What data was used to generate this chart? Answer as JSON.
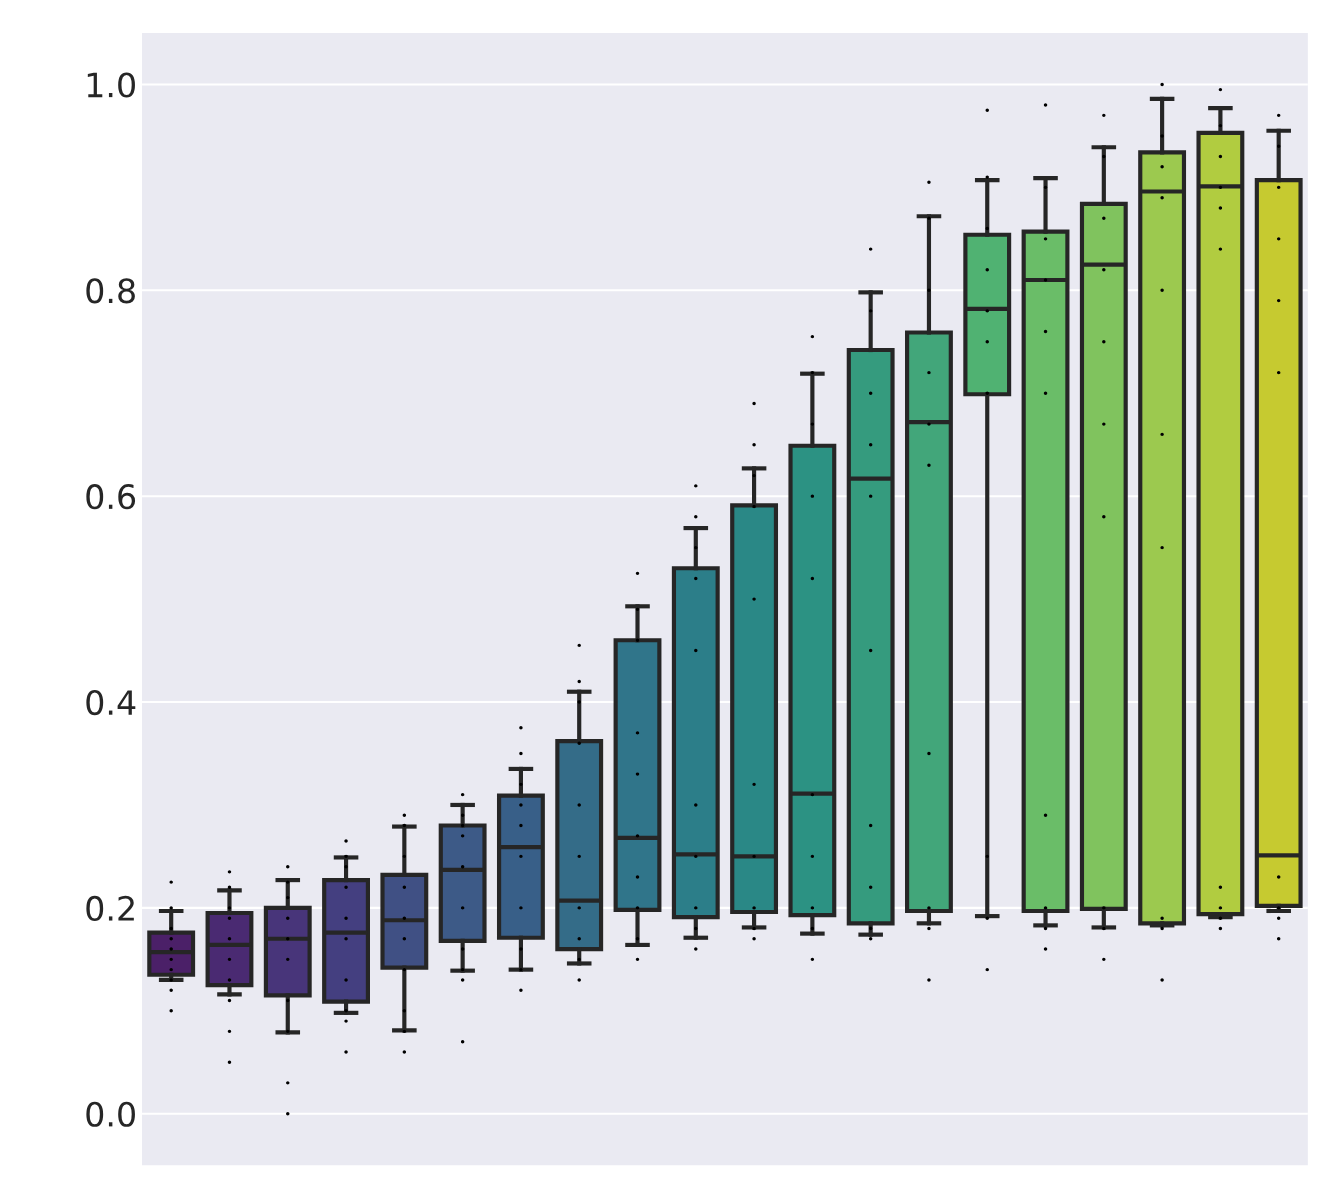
{
  "chart_data": {
    "type": "box",
    "categories": [
      null,
      null,
      null,
      null,
      null,
      null,
      null,
      null,
      null,
      null,
      null,
      null,
      null,
      null,
      null,
      null,
      null,
      null,
      null,
      null
    ],
    "colors": [
      "#4b2068",
      "#4a2a72",
      "#48357a",
      "#443f80",
      "#405084",
      "#3d5a87",
      "#385f88",
      "#346c88",
      "#30758a",
      "#2c7e89",
      "#2a8886",
      "#2c9283",
      "#359b7e",
      "#42a67a",
      "#50b272",
      "#6abd68",
      "#80c35e",
      "#9cc94f",
      "#b1cc40",
      "#c6ca30"
    ],
    "boxes": [
      {
        "low": 0.13,
        "q1": 0.135,
        "median": 0.157,
        "q3": 0.176,
        "high": 0.197
      },
      {
        "low": 0.116,
        "q1": 0.125,
        "median": 0.164,
        "q3": 0.195,
        "high": 0.217
      },
      {
        "low": 0.079,
        "q1": 0.115,
        "median": 0.17,
        "q3": 0.2,
        "high": 0.227
      },
      {
        "low": 0.098,
        "q1": 0.109,
        "median": 0.176,
        "q3": 0.227,
        "high": 0.249
      },
      {
        "low": 0.081,
        "q1": 0.142,
        "median": 0.188,
        "q3": 0.232,
        "high": 0.279
      },
      {
        "low": 0.139,
        "q1": 0.168,
        "median": 0.237,
        "q3": 0.28,
        "high": 0.3
      },
      {
        "low": 0.14,
        "q1": 0.171,
        "median": 0.259,
        "q3": 0.309,
        "high": 0.335
      },
      {
        "low": 0.146,
        "q1": 0.16,
        "median": 0.207,
        "q3": 0.362,
        "high": 0.41
      },
      {
        "low": 0.164,
        "q1": 0.198,
        "median": 0.268,
        "q3": 0.46,
        "high": 0.493
      },
      {
        "low": 0.171,
        "q1": 0.191,
        "median": 0.252,
        "q3": 0.53,
        "high": 0.569
      },
      {
        "low": 0.181,
        "q1": 0.196,
        "median": 0.25,
        "q3": 0.591,
        "high": 0.627
      },
      {
        "low": 0.175,
        "q1": 0.193,
        "median": 0.311,
        "q3": 0.649,
        "high": 0.719
      },
      {
        "low": 0.174,
        "q1": 0.185,
        "median": 0.617,
        "q3": 0.742,
        "high": 0.798
      },
      {
        "low": 0.185,
        "q1": 0.197,
        "median": 0.672,
        "q3": 0.759,
        "high": 0.872
      },
      {
        "low": 0.192,
        "q1": 0.699,
        "median": 0.782,
        "q3": 0.854,
        "high": 0.907
      },
      {
        "low": 0.183,
        "q1": 0.197,
        "median": 0.81,
        "q3": 0.857,
        "high": 0.909
      },
      {
        "low": 0.181,
        "q1": 0.199,
        "median": 0.825,
        "q3": 0.884,
        "high": 0.939
      },
      {
        "low": 0.183,
        "q1": 0.185,
        "median": 0.896,
        "q3": 0.934,
        "high": 0.986
      },
      {
        "low": 0.191,
        "q1": 0.194,
        "median": 0.901,
        "q3": 0.953,
        "high": 0.977
      },
      {
        "low": 0.197,
        "q1": 0.202,
        "median": 0.251,
        "q3": 0.907,
        "high": 0.955
      }
    ],
    "series": [
      {
        "type": "scatter",
        "color": "#000000",
        "values": [
          0.1,
          0.05,
          0.0,
          0.06,
          0.06,
          0.07,
          0.12,
          0.13,
          0.15,
          0.16,
          0.17,
          0.15,
          0.17,
          0.13,
          0.14,
          0.16,
          0.15,
          0.13,
          0.18,
          0.17
        ]
      },
      {
        "type": "scatter",
        "color": "#000000",
        "values": [
          0.12,
          0.08,
          0.03,
          0.09,
          0.08,
          0.13,
          0.14,
          0.15,
          0.17,
          0.18,
          0.18,
          0.18,
          0.18,
          0.18,
          0.19,
          0.18,
          0.18,
          0.18,
          0.19,
          0.19
        ]
      },
      {
        "type": "scatter",
        "color": "#000000",
        "values": [
          0.13,
          0.11,
          0.08,
          0.1,
          0.1,
          0.14,
          0.16,
          0.17,
          0.2,
          0.2,
          0.2,
          0.2,
          0.22,
          0.2,
          0.25,
          0.2,
          0.2,
          0.19,
          0.2,
          0.2
        ]
      },
      {
        "type": "scatter",
        "color": "#000000",
        "values": [
          0.14,
          0.13,
          0.11,
          0.13,
          0.14,
          0.16,
          0.2,
          0.2,
          0.23,
          0.25,
          0.25,
          0.25,
          0.28,
          0.35,
          0.7,
          0.29,
          0.58,
          0.55,
          0.22,
          0.23
        ]
      },
      {
        "type": "scatter",
        "color": "#000000",
        "values": [
          0.15,
          0.15,
          0.15,
          0.17,
          0.17,
          0.2,
          0.25,
          0.25,
          0.27,
          0.3,
          0.32,
          0.31,
          0.45,
          0.63,
          0.75,
          0.7,
          0.67,
          0.66,
          0.84,
          0.72
        ]
      },
      {
        "type": "scatter",
        "color": "#000000",
        "values": [
          0.16,
          0.17,
          0.17,
          0.19,
          0.19,
          0.24,
          0.28,
          0.3,
          0.33,
          0.45,
          0.5,
          0.52,
          0.6,
          0.67,
          0.78,
          0.76,
          0.75,
          0.8,
          0.88,
          0.79
        ]
      },
      {
        "type": "scatter",
        "color": "#000000",
        "values": [
          0.17,
          0.19,
          0.19,
          0.22,
          0.22,
          0.27,
          0.3,
          0.36,
          0.37,
          0.52,
          0.59,
          0.6,
          0.65,
          0.72,
          0.82,
          0.81,
          0.82,
          0.89,
          0.9,
          0.85
        ]
      },
      {
        "type": "scatter",
        "color": "#000000",
        "values": [
          0.18,
          0.2,
          0.21,
          0.24,
          0.25,
          0.28,
          0.32,
          0.4,
          0.46,
          0.55,
          0.62,
          0.67,
          0.7,
          0.8,
          0.86,
          0.85,
          0.87,
          0.92,
          0.93,
          0.9
        ]
      },
      {
        "type": "scatter",
        "color": "#000000",
        "values": [
          0.2,
          0.22,
          0.225,
          0.25,
          0.28,
          0.29,
          0.35,
          0.42,
          0.49,
          0.58,
          0.65,
          0.72,
          0.78,
          0.87,
          0.91,
          0.9,
          0.93,
          0.95,
          0.96,
          0.94
        ]
      },
      {
        "type": "scatter",
        "color": "#000000",
        "values": [
          0.225,
          0.235,
          0.24,
          0.265,
          0.29,
          0.31,
          0.375,
          0.455,
          0.525,
          0.61,
          0.69,
          0.755,
          0.84,
          0.905,
          0.975,
          0.98,
          0.97,
          1.0,
          0.995,
          0.97
        ]
      }
    ],
    "ylim": [
      -0.05,
      1.05
    ],
    "yticks": [
      {
        "value": 0,
        "label": "0.0"
      },
      0.2,
      0.4,
      0.6,
      0.8,
      {
        "value": 1,
        "label": "1.0"
      }
    ],
    "grid": "y",
    "marker": "circle",
    "tick_labels": "y"
  }
}
